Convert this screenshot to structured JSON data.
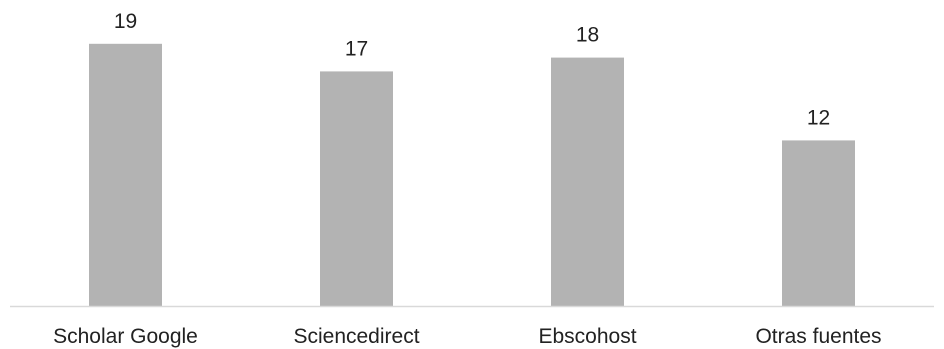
{
  "chart_data": {
    "type": "bar",
    "categories": [
      "Scholar Google",
      "Sciencedirect",
      "Ebscohost",
      "Otras fuentes"
    ],
    "values": [
      19,
      17,
      18,
      12
    ],
    "data_labels": [
      "19",
      "17",
      "18",
      "12"
    ],
    "title": "",
    "xlabel": "",
    "ylabel": "",
    "ylim": [
      0,
      20
    ],
    "grid": false,
    "legend": "none",
    "bar_color": "#b3b3b3",
    "axis_color": "#d9d9d9"
  }
}
